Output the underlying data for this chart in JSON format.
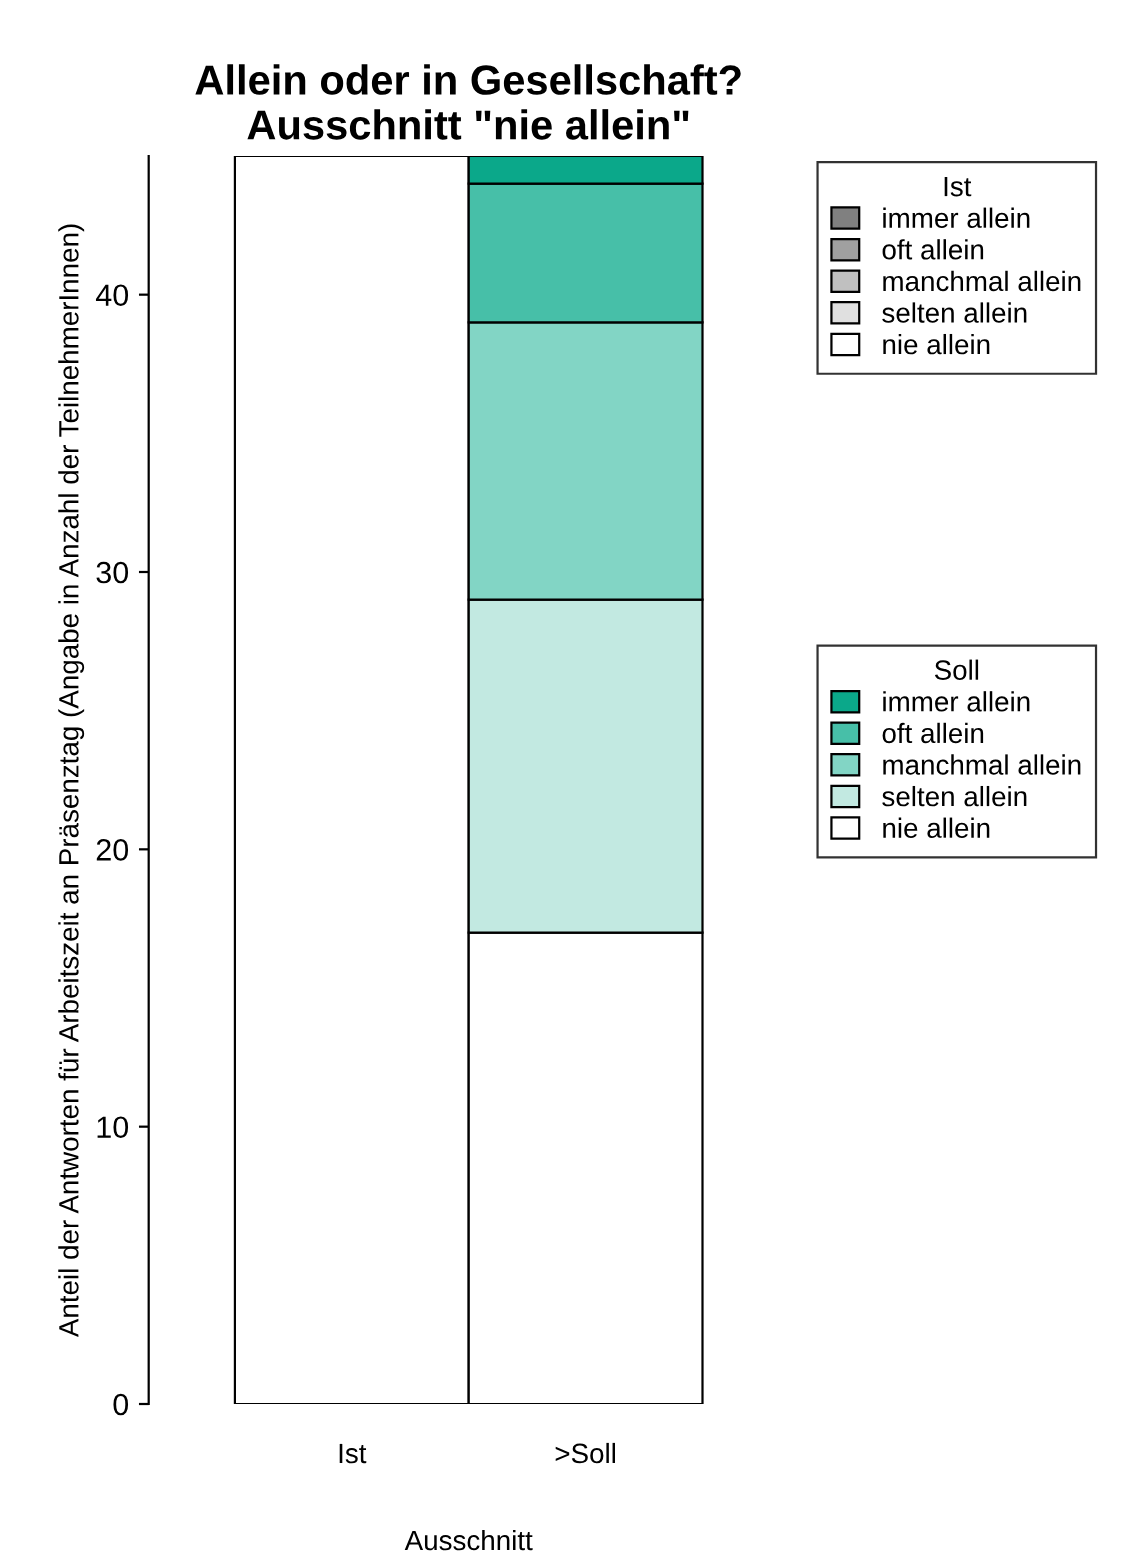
{
  "chart_data": {
    "type": "bar",
    "title": "Allein oder in Gesellschaft?\nAusschnitt \"nie allein\"",
    "xlabel": "Ausschnitt",
    "ylabel": "Anteil der Antworten für Arbeitszeit an Präsenztag (Angabe in Anzahl der TeilnehmerInnen)",
    "categories": [
      "Ist",
      ">Soll"
    ],
    "stacked": true,
    "legend": "right",
    "legend_title": "Ist",
    "annotations": [
      "Soll"
    ],
    "series": [
      {
        "name": "nie allein",
        "color": "#ffffff",
        "values": [
          45,
          null
        ]
      },
      {
        "name": "selten allein",
        "color": "#e0e0e0",
        "values": [
          null,
          null
        ]
      },
      {
        "name": "manchmal allein",
        "color": "#c0c0c0",
        "values": [
          null,
          null
        ]
      },
      {
        "name": "oft allein",
        "color": "#a0a0a0",
        "values": [
          null,
          null
        ]
      },
      {
        "name": "immer allein",
        "color": "#808080",
        "values": [
          null,
          null
        ]
      },
      {
        "name": "nie allein",
        "color": "#ffffff",
        "values": [
          null,
          17
        ]
      },
      {
        "name": "selten allein",
        "color": "#c2e9e1",
        "values": [
          null,
          12
        ]
      },
      {
        "name": "manchmal allein",
        "color": "#82d5c5",
        "values": [
          null,
          10
        ]
      },
      {
        "name": "oft allein",
        "color": "#47bfa8",
        "values": [
          null,
          5
        ]
      },
      {
        "name": "immer allein",
        "color": "#0ba88a",
        "values": [
          null,
          1
        ]
      }
    ],
    "ylim": [
      0,
      45
    ],
    "yticks": [
      0,
      10,
      20,
      30,
      40
    ],
    "grid": false
  }
}
